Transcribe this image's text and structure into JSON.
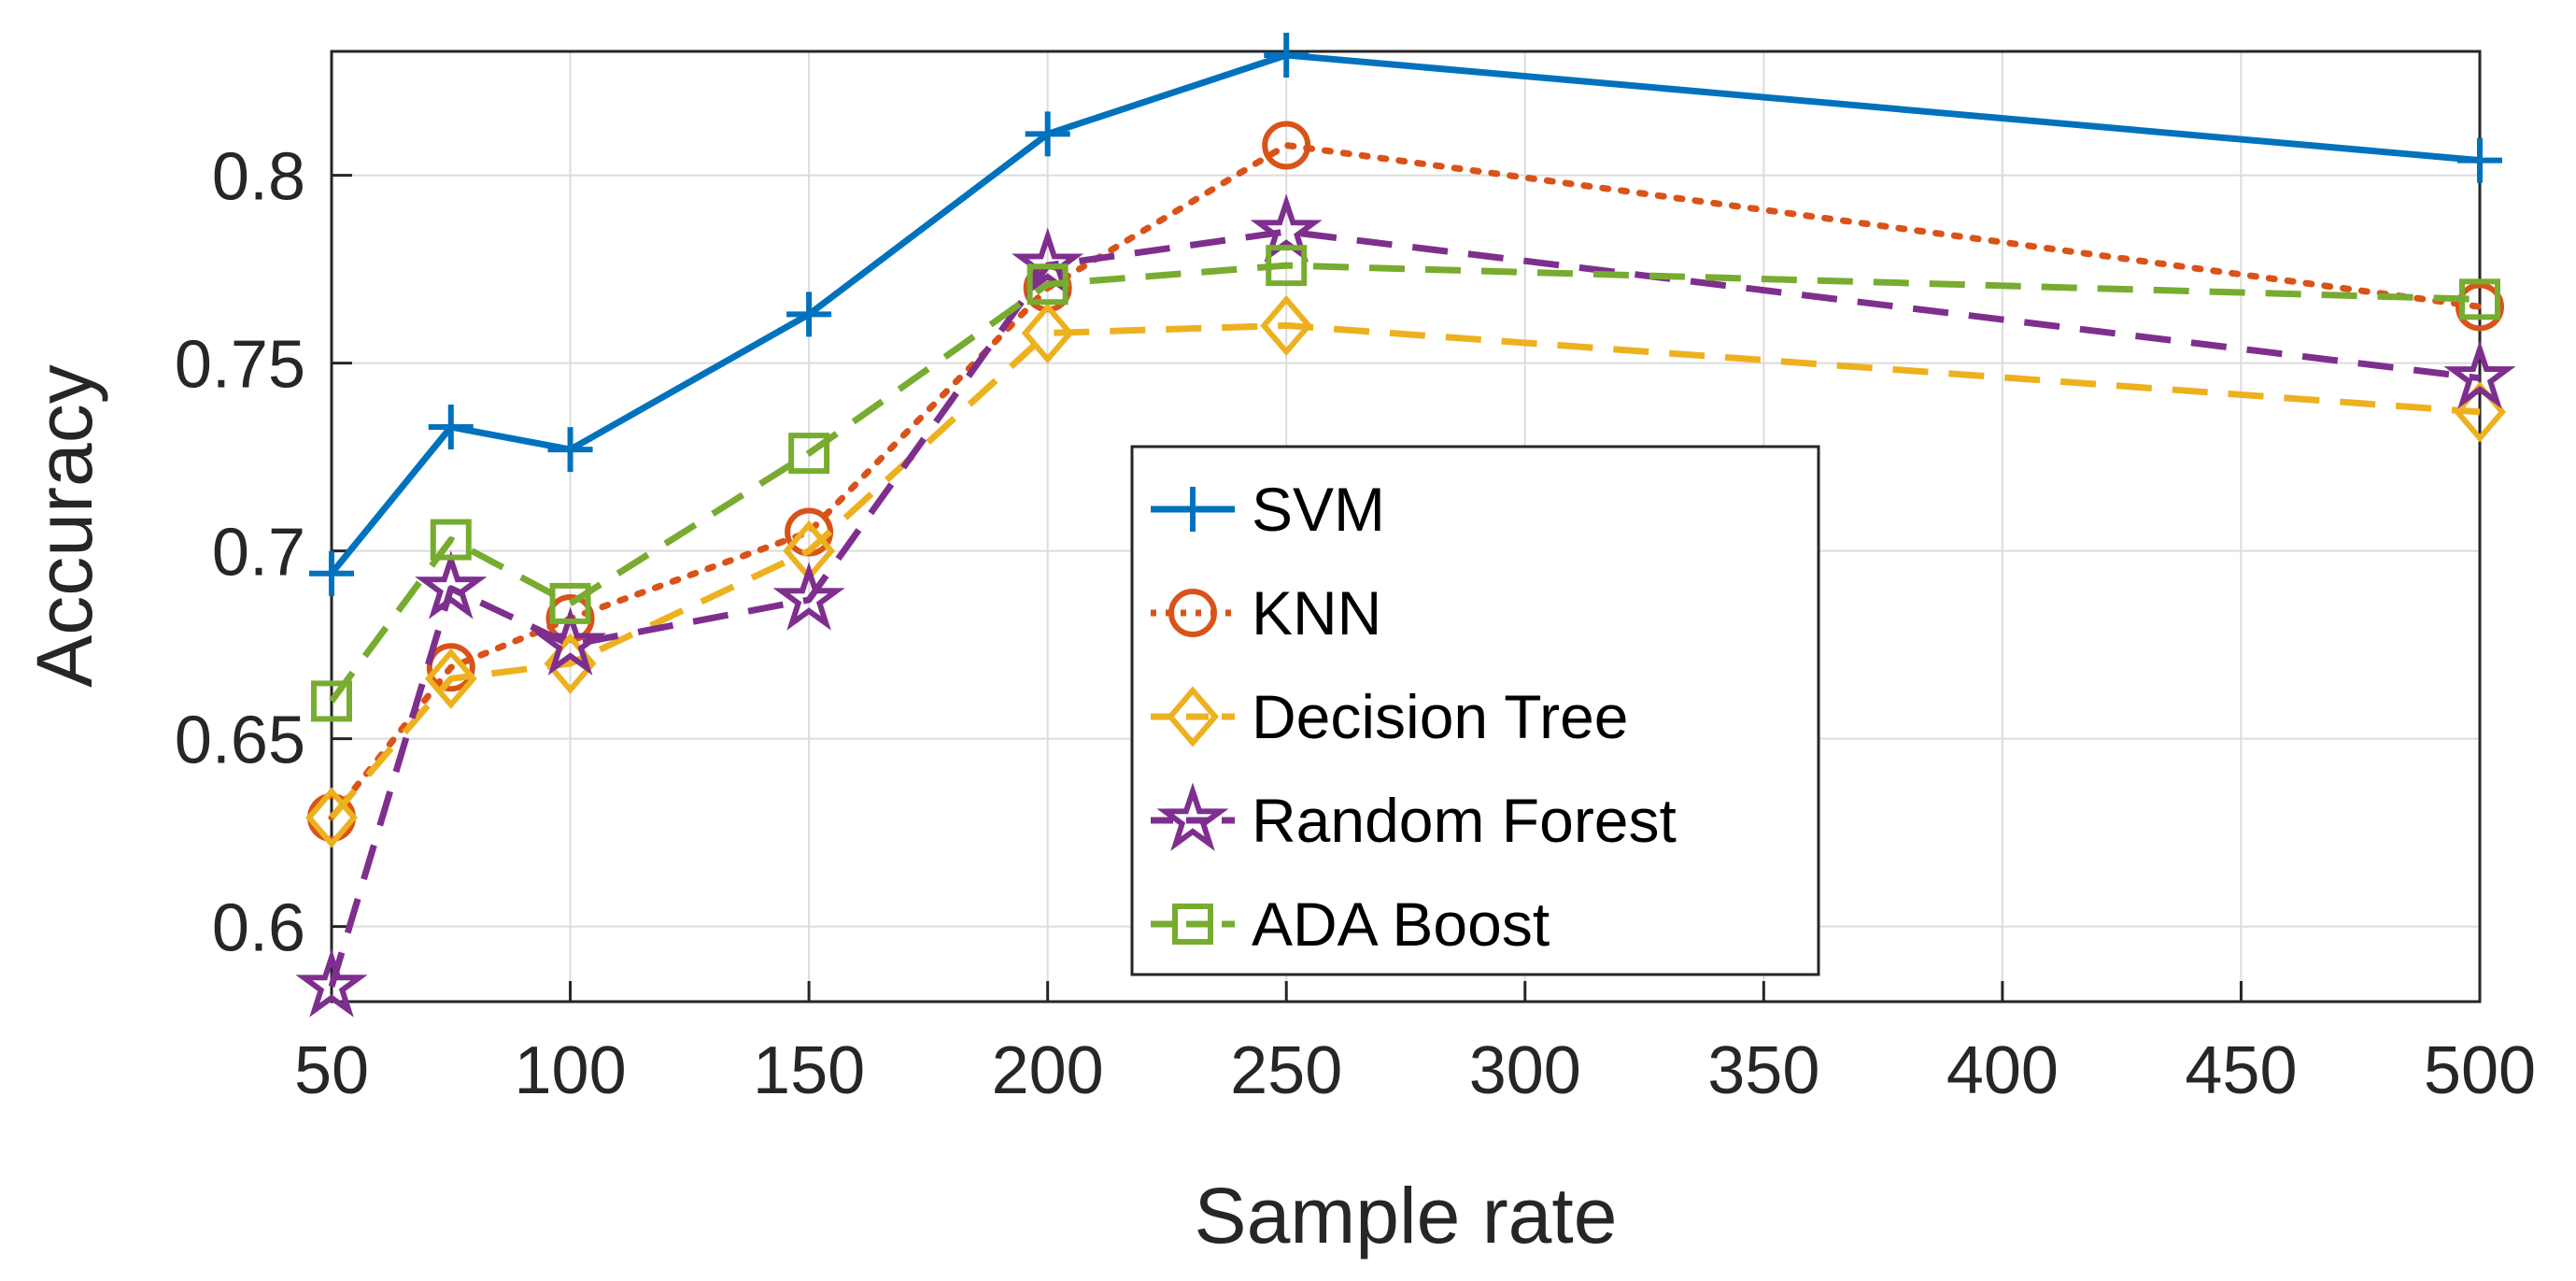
{
  "chart_data": {
    "type": "line",
    "xlabel": "Sample rate",
    "ylabel": "Accuracy",
    "x": [
      50,
      75,
      100,
      150,
      200,
      250,
      500
    ],
    "xticks": [
      "50",
      "100",
      "150",
      "200",
      "250",
      "300",
      "350",
      "400",
      "450",
      "500"
    ],
    "yticks": [
      "0.6",
      "0.65",
      "0.7",
      "0.75",
      "0.8"
    ],
    "ylim": [
      0.58,
      0.833
    ],
    "grid": true,
    "legend_position": "inside-center",
    "series": [
      {
        "name": "SVM",
        "color": "#0072BD",
        "linestyle": "solid",
        "marker": "plus",
        "values": [
          0.694,
          0.733,
          0.727,
          0.763,
          0.811,
          0.832,
          0.804
        ]
      },
      {
        "name": "KNN",
        "color": "#D95319",
        "linestyle": "dotted",
        "marker": "circle",
        "values": [
          0.629,
          0.669,
          0.682,
          0.705,
          0.77,
          0.808,
          0.765
        ]
      },
      {
        "name": "Decision Tree",
        "color": "#EDB120",
        "linestyle": "dashed",
        "marker": "diamond",
        "values": [
          0.629,
          0.666,
          0.67,
          0.7,
          0.758,
          0.76,
          0.737
        ]
      },
      {
        "name": "Random Forest",
        "color": "#7E2F8E",
        "linestyle": "dashed",
        "marker": "pentagram",
        "values": [
          0.584,
          0.69,
          0.675,
          0.687,
          0.776,
          0.785,
          0.746
        ]
      },
      {
        "name": "ADA Boost",
        "color": "#77AC30",
        "linestyle": "dashed",
        "marker": "square",
        "values": [
          0.66,
          0.703,
          0.686,
          0.726,
          0.771,
          0.776,
          0.767
        ]
      }
    ]
  }
}
